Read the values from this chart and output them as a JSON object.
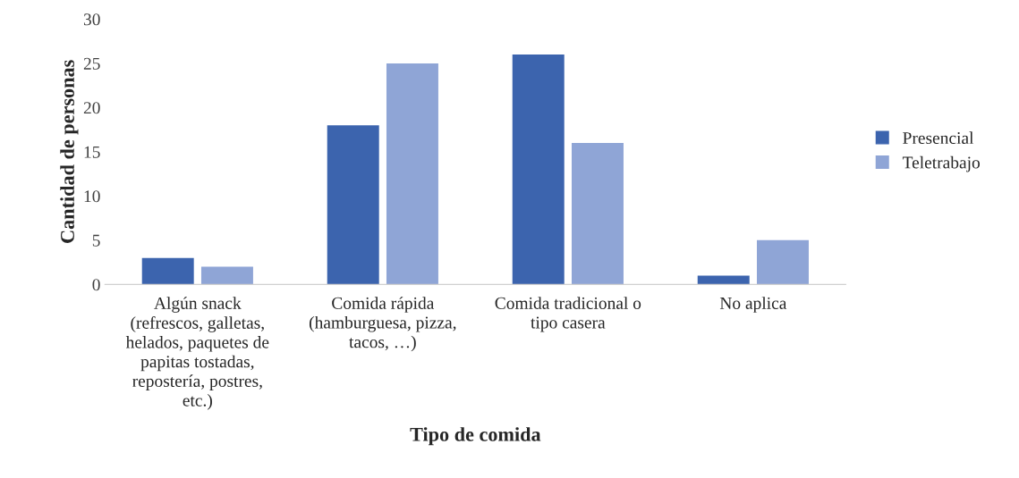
{
  "chart_data": {
    "type": "bar",
    "xlabel": "Tipo de comida",
    "ylabel": "Cantidad de personas",
    "categories": [
      "Algún snack (refrescos, galletas, helados, paquetes de papitas tostadas, repostería, postres, etc.)",
      "Comida rápida (hamburguesa, pizza, tacos, …)",
      "Comida tradicional o tipo casera",
      "No aplica"
    ],
    "series": [
      {
        "name": "Presencial",
        "color": "#3c64ae",
        "values": [
          3,
          18,
          26,
          1
        ]
      },
      {
        "name": "Teletrabajo",
        "color": "#8fa5d6",
        "values": [
          2,
          25,
          16,
          5
        ]
      }
    ],
    "ylim": [
      0,
      30
    ],
    "yticks": [
      0,
      5,
      10,
      15,
      20,
      25,
      30
    ],
    "grid": false,
    "legend": "right"
  }
}
